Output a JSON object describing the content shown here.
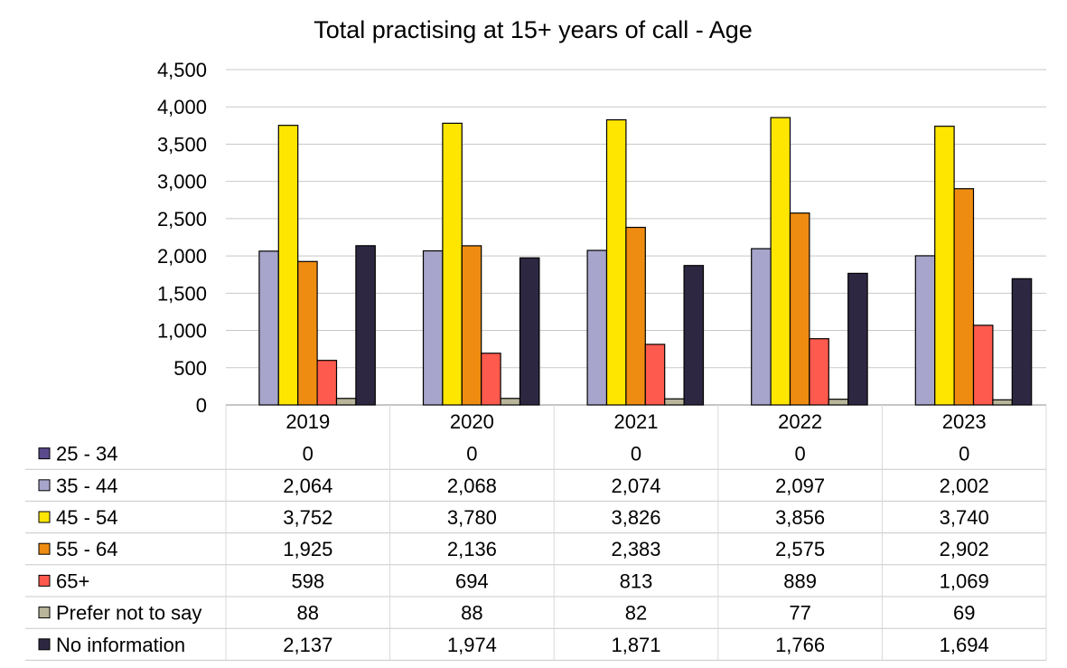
{
  "chart_data": {
    "type": "bar",
    "title": "Total practising at 15+ years of call - Age",
    "xlabel": "",
    "ylabel": "",
    "categories": [
      "2019",
      "2020",
      "2021",
      "2022",
      "2023"
    ],
    "ylim": [
      0,
      4500
    ],
    "yticks": [
      0,
      500,
      1000,
      1500,
      2000,
      2500,
      3000,
      3500,
      4000,
      4500
    ],
    "ytick_labels": [
      "0",
      "500",
      "1,000",
      "1,500",
      "2,000",
      "2,500",
      "3,000",
      "3,500",
      "4,000",
      "4,500"
    ],
    "grid": true,
    "legend": "data-table",
    "series": [
      {
        "name": "25 - 34",
        "color": "#5b4a8b",
        "values": [
          0,
          0,
          0,
          0,
          0
        ],
        "labels": [
          "0",
          "0",
          "0",
          "0",
          "0"
        ]
      },
      {
        "name": "35 - 44",
        "color": "#a7a5cb",
        "values": [
          2064,
          2068,
          2074,
          2097,
          2002
        ],
        "labels": [
          "2,064",
          "2,068",
          "2,074",
          "2,097",
          "2,002"
        ]
      },
      {
        "name": "45 - 54",
        "color": "#ffe600",
        "values": [
          3752,
          3780,
          3826,
          3856,
          3740
        ],
        "labels": [
          "3,752",
          "3,780",
          "3,826",
          "3,856",
          "3,740"
        ]
      },
      {
        "name": "55 - 64",
        "color": "#ee8c12",
        "values": [
          1925,
          2136,
          2383,
          2575,
          2902
        ],
        "labels": [
          "1,925",
          "2,136",
          "2,383",
          "2,575",
          "2,902"
        ]
      },
      {
        "name": "65+",
        "color": "#ff5a4e",
        "values": [
          598,
          694,
          813,
          889,
          1069
        ],
        "labels": [
          "598",
          "694",
          "813",
          "889",
          "1,069"
        ]
      },
      {
        "name": "Prefer not to say",
        "color": "#b8b59a",
        "values": [
          88,
          88,
          82,
          77,
          69
        ],
        "labels": [
          "88",
          "88",
          "82",
          "77",
          "69"
        ]
      },
      {
        "name": "No information",
        "color": "#2e2742",
        "values": [
          2137,
          1974,
          1871,
          1766,
          1694
        ],
        "labels": [
          "2,137",
          "1,974",
          "1,871",
          "1,766",
          "1,694"
        ]
      }
    ]
  }
}
